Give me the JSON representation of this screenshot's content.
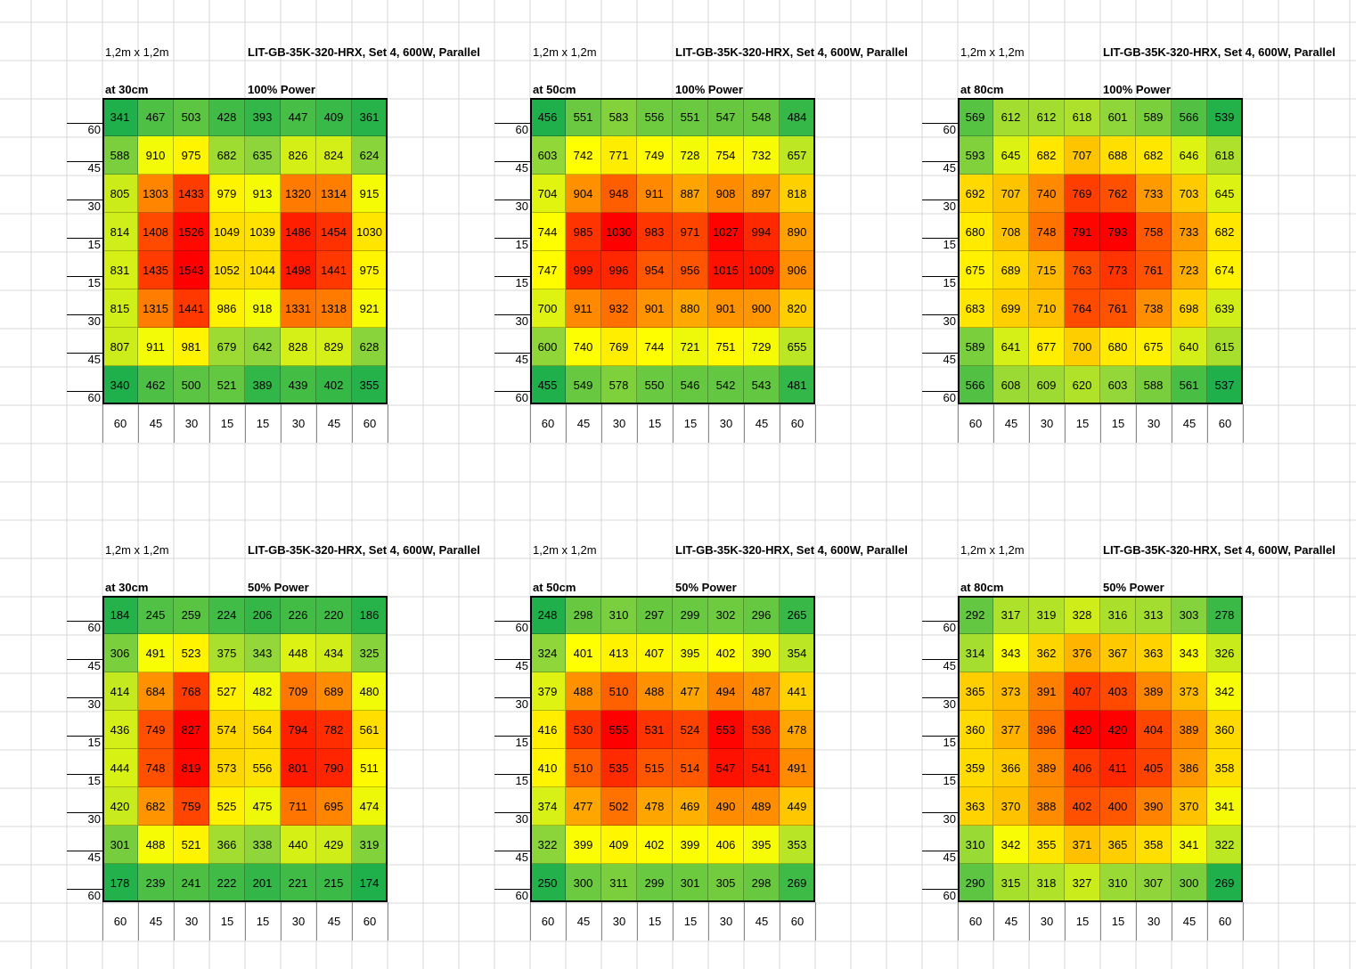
{
  "chart_data": [
    {
      "type": "heatmap",
      "panel": 1,
      "area": "1,2m x 1,2m",
      "model": "LIT-GB-35K-320-HRX, Set 4, 600W, Parallel",
      "height": "at 30cm",
      "power": "100% Power",
      "row_labels": [
        "60",
        "45",
        "30",
        "15",
        "15",
        "30",
        "45",
        "60"
      ],
      "col_labels": [
        "60",
        "45",
        "30",
        "15",
        "15",
        "30",
        "45",
        "60"
      ],
      "values": [
        [
          341,
          467,
          503,
          428,
          393,
          447,
          409,
          361
        ],
        [
          588,
          910,
          975,
          682,
          635,
          826,
          824,
          624
        ],
        [
          805,
          1303,
          1433,
          979,
          913,
          1320,
          1314,
          915
        ],
        [
          814,
          1408,
          1526,
          1049,
          1039,
          1486,
          1454,
          1030
        ],
        [
          831,
          1435,
          1543,
          1052,
          1044,
          1498,
          1441,
          975
        ],
        [
          815,
          1315,
          1441,
          986,
          918,
          1331,
          1318,
          921
        ],
        [
          807,
          911,
          981,
          679,
          642,
          828,
          829,
          628
        ],
        [
          340,
          462,
          500,
          521,
          389,
          439,
          402,
          355
        ]
      ]
    },
    {
      "type": "heatmap",
      "panel": 2,
      "area": "1,2m x 1,2m",
      "model": "LIT-GB-35K-320-HRX, Set 4, 600W, Parallel",
      "height": "at 50cm",
      "power": "100% Power",
      "row_labels": [
        "60",
        "45",
        "30",
        "15",
        "15",
        "30",
        "45",
        "60"
      ],
      "col_labels": [
        "60",
        "45",
        "30",
        "15",
        "15",
        "30",
        "45",
        "60"
      ],
      "values": [
        [
          456,
          551,
          583,
          556,
          551,
          547,
          548,
          484
        ],
        [
          603,
          742,
          771,
          749,
          728,
          754,
          732,
          657
        ],
        [
          704,
          904,
          948,
          911,
          887,
          908,
          897,
          818
        ],
        [
          744,
          985,
          1030,
          983,
          971,
          1027,
          994,
          890
        ],
        [
          747,
          999,
          996,
          954,
          956,
          1015,
          1009,
          906
        ],
        [
          700,
          911,
          932,
          901,
          880,
          901,
          900,
          820
        ],
        [
          600,
          740,
          769,
          744,
          721,
          751,
          729,
          655
        ],
        [
          455,
          549,
          578,
          550,
          546,
          542,
          543,
          481
        ]
      ]
    },
    {
      "type": "heatmap",
      "panel": 3,
      "area": "1,2m x 1,2m",
      "model": "LIT-GB-35K-320-HRX, Set 4, 600W, Parallel",
      "height": "at 80cm",
      "power": "100% Power",
      "row_labels": [
        "60",
        "45",
        "30",
        "15",
        "15",
        "30",
        "45",
        "60"
      ],
      "col_labels": [
        "60",
        "45",
        "30",
        "15",
        "15",
        "30",
        "45",
        "60"
      ],
      "values": [
        [
          569,
          612,
          612,
          618,
          601,
          589,
          566,
          539
        ],
        [
          593,
          645,
          682,
          707,
          688,
          682,
          646,
          618
        ],
        [
          692,
          707,
          740,
          769,
          762,
          733,
          703,
          645
        ],
        [
          680,
          708,
          748,
          791,
          793,
          758,
          733,
          682
        ],
        [
          675,
          689,
          715,
          763,
          773,
          761,
          723,
          674
        ],
        [
          683,
          699,
          710,
          764,
          761,
          738,
          698,
          639
        ],
        [
          589,
          641,
          677,
          700,
          680,
          675,
          640,
          615
        ],
        [
          566,
          608,
          609,
          620,
          603,
          588,
          561,
          537
        ]
      ]
    },
    {
      "type": "heatmap",
      "panel": 4,
      "area": "1,2m x 1,2m",
      "model": "LIT-GB-35K-320-HRX, Set 4, 600W, Parallel",
      "height": "at 30cm",
      "power": "50% Power",
      "row_labels": [
        "60",
        "45",
        "30",
        "15",
        "15",
        "30",
        "45",
        "60"
      ],
      "col_labels": [
        "60",
        "45",
        "30",
        "15",
        "15",
        "30",
        "45",
        "60"
      ],
      "values": [
        [
          184,
          245,
          259,
          224,
          206,
          226,
          220,
          186
        ],
        [
          306,
          491,
          523,
          375,
          343,
          448,
          434,
          325
        ],
        [
          414,
          684,
          768,
          527,
          482,
          709,
          689,
          480
        ],
        [
          436,
          749,
          827,
          574,
          564,
          794,
          782,
          561
        ],
        [
          444,
          748,
          819,
          573,
          556,
          801,
          790,
          511
        ],
        [
          420,
          682,
          759,
          525,
          475,
          711,
          695,
          474
        ],
        [
          301,
          488,
          521,
          366,
          338,
          440,
          429,
          319
        ],
        [
          178,
          239,
          241,
          222,
          201,
          221,
          215,
          174
        ]
      ]
    },
    {
      "type": "heatmap",
      "panel": 5,
      "area": "1,2m x 1,2m",
      "model": "LIT-GB-35K-320-HRX, Set 4, 600W, Parallel",
      "height": "at 50cm",
      "power": "50% Power",
      "row_labels": [
        "60",
        "45",
        "30",
        "15",
        "15",
        "30",
        "45",
        "60"
      ],
      "col_labels": [
        "60",
        "45",
        "30",
        "15",
        "15",
        "30",
        "45",
        "60"
      ],
      "values": [
        [
          248,
          298,
          310,
          297,
          299,
          302,
          296,
          265
        ],
        [
          324,
          401,
          413,
          407,
          395,
          402,
          390,
          354
        ],
        [
          379,
          488,
          510,
          488,
          477,
          494,
          487,
          441
        ],
        [
          416,
          530,
          555,
          531,
          524,
          553,
          536,
          478
        ],
        [
          410,
          510,
          535,
          515,
          514,
          547,
          541,
          491
        ],
        [
          374,
          477,
          502,
          478,
          469,
          490,
          489,
          449
        ],
        [
          322,
          399,
          409,
          402,
          399,
          406,
          395,
          353
        ],
        [
          250,
          300,
          311,
          299,
          301,
          305,
          298,
          269
        ]
      ]
    },
    {
      "type": "heatmap",
      "panel": 6,
      "area": "1,2m x 1,2m",
      "model": "LIT-GB-35K-320-HRX, Set 4, 600W, Parallel",
      "height": "at 80cm",
      "power": "50% Power",
      "row_labels": [
        "60",
        "45",
        "30",
        "15",
        "15",
        "30",
        "45",
        "60"
      ],
      "col_labels": [
        "60",
        "45",
        "30",
        "15",
        "15",
        "30",
        "45",
        "60"
      ],
      "values": [
        [
          292,
          317,
          319,
          328,
          316,
          313,
          303,
          278
        ],
        [
          314,
          343,
          362,
          376,
          367,
          363,
          343,
          326
        ],
        [
          365,
          373,
          391,
          407,
          403,
          389,
          373,
          342
        ],
        [
          360,
          377,
          396,
          420,
          420,
          404,
          389,
          360
        ],
        [
          359,
          366,
          389,
          406,
          411,
          405,
          386,
          358
        ],
        [
          363,
          370,
          388,
          402,
          400,
          390,
          370,
          341
        ],
        [
          310,
          342,
          355,
          371,
          365,
          358,
          341,
          322
        ],
        [
          290,
          315,
          318,
          327,
          310,
          307,
          300,
          269
        ]
      ]
    }
  ],
  "color_scale": {
    "low": "#1fb04b",
    "mid_low": "#8fd63a",
    "mid": "#ffff00",
    "mid_high": "#ffa500",
    "high": "#ff0000"
  }
}
